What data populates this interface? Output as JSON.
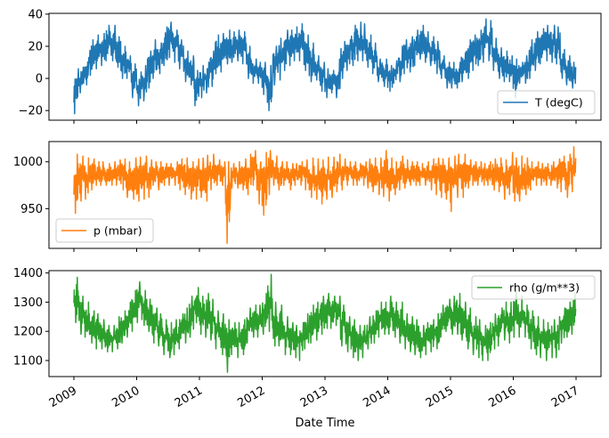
{
  "chart_data": [
    {
      "type": "line",
      "series": [
        {
          "name": "T (degC)",
          "color": "#1f77b4"
        }
      ],
      "legend": "T (degC)",
      "legend_position": "lower-right",
      "ylim": [
        -26,
        40.5
      ],
      "yticks": [
        -20,
        0,
        20,
        40
      ],
      "years": [
        2009,
        2010,
        2011,
        2012,
        2013,
        2014,
        2015,
        2016
      ],
      "monthly_min": [
        [
          -22,
          -9,
          -4,
          2,
          6,
          8,
          11,
          11,
          7,
          0,
          0,
          -12
        ],
        [
          -17,
          -14,
          -6,
          0,
          3,
          8,
          13,
          10,
          6,
          -2,
          -4,
          -17
        ],
        [
          -12,
          -9,
          -5,
          3,
          4,
          9,
          10,
          11,
          9,
          0,
          -3,
          -3
        ],
        [
          -10,
          -20,
          -4,
          -1,
          5,
          8,
          11,
          11,
          5,
          -2,
          -1,
          -8
        ],
        [
          -12,
          -9,
          -12,
          0,
          5,
          8,
          11,
          11,
          7,
          3,
          -2,
          -5
        ],
        [
          -8,
          -3,
          -2,
          3,
          4,
          8,
          12,
          10,
          8,
          3,
          0,
          -6
        ],
        [
          -6,
          -6,
          -2,
          0,
          5,
          8,
          10,
          11,
          5,
          0,
          -2,
          -2
        ],
        [
          -12,
          -3,
          -3,
          0,
          5,
          9,
          11,
          10,
          9,
          0,
          -4,
          -6
        ]
      ],
      "monthly_max": [
        [
          6,
          7,
          13,
          24,
          27,
          28,
          33,
          33,
          26,
          20,
          14,
          9
        ],
        [
          4,
          8,
          17,
          24,
          22,
          32,
          35,
          30,
          24,
          17,
          14,
          5
        ],
        [
          8,
          10,
          17,
          27,
          28,
          30,
          29,
          30,
          29,
          20,
          12,
          10
        ],
        [
          10,
          8,
          20,
          25,
          30,
          30,
          32,
          34,
          27,
          22,
          14,
          10
        ],
        [
          6,
          5,
          12,
          23,
          24,
          33,
          35,
          34,
          27,
          22,
          12,
          12
        ],
        [
          8,
          11,
          20,
          24,
          26,
          30,
          33,
          29,
          26,
          23,
          14,
          10
        ],
        [
          10,
          10,
          16,
          24,
          27,
          30,
          37,
          36,
          25,
          19,
          17,
          14
        ],
        [
          12,
          10,
          14,
          24,
          29,
          31,
          33,
          33,
          32,
          18,
          14,
          10
        ]
      ]
    },
    {
      "type": "line",
      "series": [
        {
          "name": "p (mbar)",
          "color": "#ff7f0e"
        }
      ],
      "legend": "p (mbar)",
      "legend_position": "lower-left",
      "ylim": [
        907.6,
        1021.6
      ],
      "yticks": [
        950,
        1000
      ],
      "years": [
        2009,
        2010,
        2011,
        2012,
        2013,
        2014,
        2015,
        2016
      ],
      "monthly_min": [
        [
          945,
          958,
          960,
          970,
          975,
          975,
          975,
          975,
          975,
          970,
          962,
          960
        ],
        [
          958,
          960,
          962,
          975,
          970,
          975,
          975,
          975,
          970,
          965,
          960,
          960
        ],
        [
          962,
          958,
          970,
          975,
          975,
          913,
          972,
          972,
          970,
          965,
          975,
          955
        ],
        [
          943,
          965,
          975,
          970,
          975,
          970,
          975,
          975,
          970,
          962,
          960,
          955
        ],
        [
          960,
          962,
          968,
          970,
          975,
          975,
          975,
          975,
          972,
          968,
          965,
          963
        ],
        [
          958,
          965,
          970,
          972,
          975,
          975,
          975,
          975,
          970,
          965,
          962,
          960
        ],
        [
          947,
          962,
          962,
          972,
          975,
          975,
          975,
          975,
          970,
          968,
          960,
          965
        ],
        [
          958,
          958,
          965,
          970,
          975,
          975,
          975,
          975,
          972,
          968,
          962,
          968
        ]
      ],
      "monthly_max": [
        [
          1008,
          1006,
          1004,
          1003,
          1000,
          1000,
          998,
          1000,
          1002,
          1003,
          1000,
          1004
        ],
        [
          1005,
          1006,
          1002,
          1000,
          1000,
          998,
          998,
          1000,
          1003,
          1004,
          1000,
          1003
        ],
        [
          1004,
          1007,
          1008,
          1002,
          1000,
          1000,
          998,
          1000,
          1003,
          1008,
          1012,
          1000
        ],
        [
          1010,
          1012,
          1006,
          1000,
          1000,
          998,
          998,
          1000,
          1002,
          1004,
          1003,
          1002
        ],
        [
          1005,
          1005,
          1008,
          1003,
          1000,
          1000,
          998,
          1000,
          1003,
          1004,
          1004,
          1012
        ],
        [
          1004,
          1000,
          1006,
          1002,
          1000,
          1000,
          998,
          1000,
          1003,
          1004,
          1003,
          1004
        ],
        [
          1006,
          1008,
          1008,
          1002,
          1000,
          1000,
          998,
          1000,
          1003,
          1004,
          1002,
          1010
        ],
        [
          1004,
          1006,
          1004,
          1000,
          1000,
          998,
          998,
          1000,
          1003,
          1006,
          1008,
          1016
        ]
      ]
    },
    {
      "type": "line",
      "series": [
        {
          "name": "rho (g/m**3)",
          "color": "#2ca02c"
        }
      ],
      "legend": "rho (g/m**3)",
      "legend_position": "upper-right",
      "ylim": [
        1045,
        1408
      ],
      "yticks": [
        1100,
        1200,
        1300,
        1400
      ],
      "years": [
        2009,
        2010,
        2011,
        2012,
        2013,
        2014,
        2015,
        2016
      ],
      "monthly_min": [
        [
          1230,
          1190,
          1180,
          1160,
          1140,
          1140,
          1130,
          1130,
          1140,
          1160,
          1180,
          1200
        ],
        [
          1230,
          1220,
          1200,
          1160,
          1150,
          1120,
          1110,
          1120,
          1140,
          1160,
          1180,
          1230
        ],
        [
          1190,
          1180,
          1170,
          1140,
          1120,
          1060,
          1120,
          1110,
          1120,
          1160,
          1180,
          1180
        ],
        [
          1190,
          1200,
          1150,
          1150,
          1120,
          1120,
          1110,
          1100,
          1140,
          1160,
          1170,
          1190
        ],
        [
          1210,
          1210,
          1220,
          1150,
          1130,
          1110,
          1100,
          1110,
          1140,
          1160,
          1180,
          1190
        ],
        [
          1190,
          1180,
          1160,
          1140,
          1130,
          1120,
          1110,
          1120,
          1130,
          1140,
          1180,
          1200
        ],
        [
          1190,
          1190,
          1170,
          1140,
          1120,
          1110,
          1100,
          1100,
          1140,
          1150,
          1170,
          1160
        ],
        [
          1180,
          1180,
          1180,
          1140,
          1120,
          1110,
          1100,
          1110,
          1110,
          1160,
          1180,
          1190
        ]
      ],
      "monthly_max": [
        [
          1385,
          1320,
          1300,
          1270,
          1260,
          1240,
          1220,
          1220,
          1250,
          1270,
          1300,
          1340
        ],
        [
          1370,
          1340,
          1310,
          1280,
          1260,
          1240,
          1230,
          1240,
          1260,
          1280,
          1320,
          1350
        ],
        [
          1320,
          1330,
          1310,
          1270,
          1260,
          1240,
          1230,
          1230,
          1240,
          1280,
          1290,
          1290
        ],
        [
          1330,
          1395,
          1300,
          1290,
          1250,
          1230,
          1220,
          1230,
          1260,
          1290,
          1300,
          1320
        ],
        [
          1330,
          1320,
          1320,
          1290,
          1250,
          1240,
          1220,
          1220,
          1250,
          1270,
          1300,
          1300
        ],
        [
          1320,
          1300,
          1300,
          1260,
          1250,
          1240,
          1220,
          1230,
          1240,
          1260,
          1290,
          1310
        ],
        [
          1320,
          1330,
          1300,
          1280,
          1250,
          1240,
          1220,
          1230,
          1260,
          1280,
          1300,
          1300
        ],
        [
          1340,
          1320,
          1290,
          1270,
          1250,
          1240,
          1230,
          1240,
          1250,
          1280,
          1300,
          1330
        ]
      ]
    }
  ],
  "x_axis": {
    "label": "Date Time",
    "ticks": [
      "2009",
      "2010",
      "2011",
      "2012",
      "2013",
      "2014",
      "2015",
      "2016",
      "2017"
    ]
  }
}
